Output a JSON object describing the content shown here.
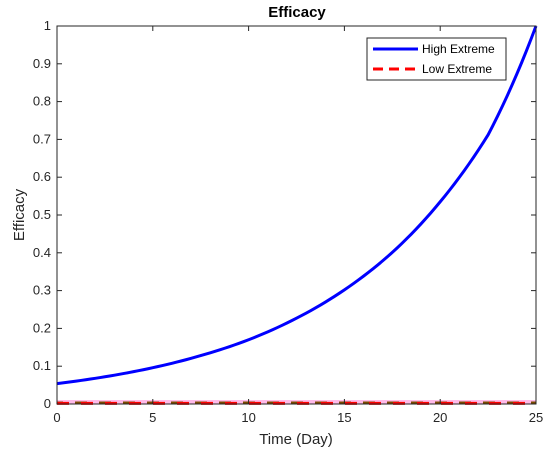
{
  "chart_data": {
    "type": "line",
    "title": "Efficacy",
    "xlabel": "Time (Day)",
    "ylabel": "Efficacy",
    "xlim": [
      0,
      25
    ],
    "ylim": [
      0,
      1
    ],
    "x_ticks": [
      "0",
      "5",
      "10",
      "15",
      "20",
      "25"
    ],
    "y_ticks": [
      "0",
      "0.1",
      "0.2",
      "0.3",
      "0.4",
      "0.5",
      "0.6",
      "0.7",
      "0.8",
      "0.9",
      "1"
    ],
    "grid": false,
    "legend_position": "top-right",
    "series": [
      {
        "name": "High Extreme",
        "style": "solid",
        "color": "#0000ff",
        "x": [
          0,
          2.5,
          5,
          7.5,
          10,
          12.5,
          15,
          17.5,
          20,
          22.5,
          25
        ],
        "y": [
          0.054,
          0.072,
          0.096,
          0.128,
          0.17,
          0.227,
          0.302,
          0.401,
          0.535,
          0.712,
          1.0
        ]
      },
      {
        "name": "Low Extreme",
        "style": "dashed",
        "color": "#ff0000",
        "x": [
          0,
          25
        ],
        "y": [
          0.0015,
          0.0015
        ]
      }
    ],
    "baseline_band": {
      "dash_color": "#7a4a00",
      "fill_color": "#ff66cc",
      "x": [
        0,
        25
      ],
      "y": [
        0,
        0
      ]
    }
  }
}
